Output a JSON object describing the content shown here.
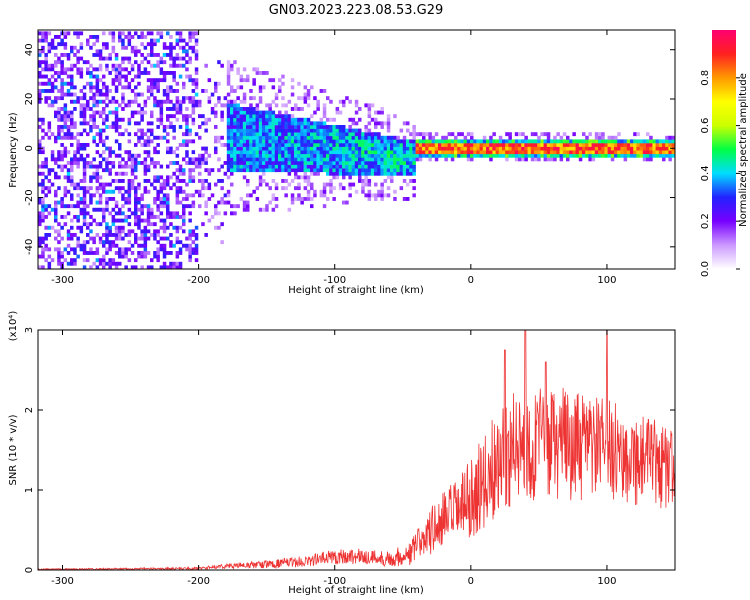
{
  "figure": {
    "title": "GN03.2023.223.08.53.G29"
  },
  "chart_data": [
    {
      "type": "heatmap",
      "title": "GN03.2023.223.08.53.G29",
      "xlabel": "Height of straight line (km)",
      "ylabel": "Frequency (Hz)",
      "xlim": [
        -318,
        150
      ],
      "ylim": [
        -49,
        48
      ],
      "xticks": [
        -300,
        -200,
        -100,
        0,
        100
      ],
      "yticks": [
        -40,
        -20,
        0,
        20,
        40
      ],
      "colorbar": {
        "label": "Normalized spectral amplitude",
        "range": [
          0.0,
          1.0
        ],
        "ticks": [
          "0.0",
          "0.2",
          "0.4",
          "0.6",
          "0.8"
        ],
        "colors": [
          "#ffffff",
          "#cc99ff",
          "#7700ff",
          "#2222ff",
          "#00ddff",
          "#00ff44",
          "#ccff00",
          "#ffff00",
          "#ff9900",
          "#ff2020",
          "#ff0070"
        ]
      },
      "regions": [
        {
          "x": [
            -318,
            -200
          ],
          "freq_spread": [
            -49,
            48
          ],
          "amplitude": "0.1-0.3",
          "pattern": "scattered"
        },
        {
          "x": [
            -200,
            -40
          ],
          "freq_spread": [
            -12,
            18
          ],
          "amplitude": "0.2-0.5",
          "pattern": "band narrowing"
        },
        {
          "x": [
            -40,
            150
          ],
          "freq_spread": [
            -3,
            3
          ],
          "amplitude": "0.4-0.9",
          "pattern": "narrow band near 0 Hz"
        }
      ]
    },
    {
      "type": "line",
      "xlabel": "Height of straight line (km)",
      "ylabel": "SNR (10 * v/v)",
      "y_multiplier": "(x10⁴)",
      "xlim": [
        -318,
        150
      ],
      "ylim": [
        0,
        3
      ],
      "xticks": [
        -300,
        -200,
        -100,
        0,
        100
      ],
      "yticks": [
        0,
        1,
        2,
        3
      ],
      "color": "#ee3333",
      "envelope": {
        "x": [
          -318,
          -250,
          -200,
          -180,
          -150,
          -120,
          -100,
          -80,
          -60,
          -45,
          -35,
          -25,
          -15,
          -5,
          0,
          10,
          20,
          30,
          40,
          50,
          60,
          70,
          80,
          90,
          100,
          110,
          120,
          130,
          140,
          150
        ],
        "mean": [
          0.01,
          0.015,
          0.02,
          0.05,
          0.07,
          0.11,
          0.17,
          0.17,
          0.14,
          0.2,
          0.4,
          0.55,
          0.68,
          0.8,
          0.9,
          1.1,
          1.35,
          1.5,
          1.55,
          1.6,
          1.55,
          1.6,
          1.5,
          1.55,
          1.5,
          1.45,
          1.4,
          1.35,
          1.3,
          1.25
        ],
        "spread": [
          0.008,
          0.01,
          0.015,
          0.03,
          0.05,
          0.07,
          0.1,
          0.1,
          0.1,
          0.15,
          0.25,
          0.35,
          0.4,
          0.45,
          0.5,
          0.6,
          0.7,
          0.7,
          0.75,
          0.7,
          0.7,
          0.7,
          0.7,
          0.65,
          0.65,
          0.6,
          0.6,
          0.6,
          0.55,
          0.5
        ]
      },
      "peaks": [
        [
          40,
          3.0
        ],
        [
          100,
          3.0
        ],
        [
          25,
          2.75
        ],
        [
          55,
          2.6
        ]
      ]
    }
  ]
}
